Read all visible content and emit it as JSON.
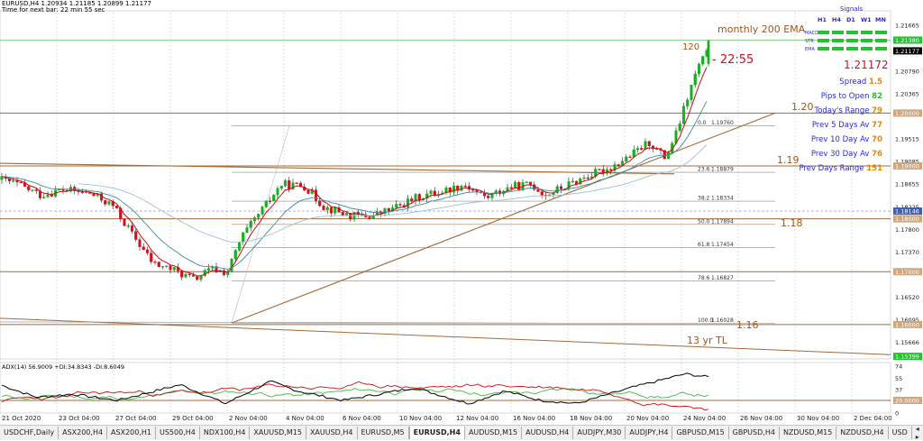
{
  "window": {
    "title": "EURUSD,H4  1.20934 1.21185 1.20899 1.21177",
    "subtitle": "Time for next bar: 22 min 55 sec"
  },
  "colors": {
    "background": "#ffffff",
    "grid": "#c9c9c9",
    "bull_candle": "#13b11d",
    "bear_candle": "#d0101e",
    "ema_red": "#c41010",
    "ema_teal": "#3d8b9e",
    "ema_lightblue": "#9cc2d8",
    "trendline": "#a36a3a",
    "fib": "#8a8a8a",
    "annotation": "#a3561a",
    "signal_green": "#22c32e",
    "price_red": "#d0101e",
    "adx_black": "#000000",
    "adx_green": "#45b845",
    "adx_red": "#c41010"
  },
  "price_axis": {
    "ticks": [
      "1.21665",
      "1.21380",
      "1.21177",
      "1.20790",
      "1.20365",
      "1.20000",
      "1.19515",
      "1.19085",
      "1.19000",
      "1.18655",
      "1.18225",
      "1.18146",
      "1.18000",
      "1.17800",
      "1.17370",
      "1.17000",
      "1.16520",
      "1.16095",
      "1.16000",
      "1.15666",
      "1.15395"
    ],
    "min": 1.1535,
    "max": 1.219
  },
  "price_markers": [
    {
      "label": "1.21380",
      "price": 1.2138,
      "kind": "level"
    },
    {
      "label": "1.21177",
      "price": 1.21177,
      "kind": "current"
    },
    {
      "label": "1.20000",
      "price": 1.2,
      "kind": "level"
    },
    {
      "label": "1.19000",
      "price": 1.19,
      "kind": "level"
    },
    {
      "label": "1.18146",
      "price": 1.18146,
      "kind": "bid"
    },
    {
      "label": "1.18000",
      "price": 1.18,
      "kind": "level"
    },
    {
      "label": "1.17000",
      "price": 1.17,
      "kind": "level"
    },
    {
      "label": "1.16000",
      "price": 1.16,
      "kind": "level"
    },
    {
      "label": "1.15399",
      "price": 1.15399,
      "kind": "level"
    }
  ],
  "time_axis": {
    "labels": [
      "21 Oct 2020",
      "23 Oct 04:00",
      "27 Oct 04:00",
      "29 Oct 04:00",
      "2 Nov 04:00",
      "4 Nov 04:00",
      "6 Nov 04:00",
      "10 Nov 04:00",
      "12 Nov 04:00",
      "16 Nov 04:00",
      "18 Nov 04:00",
      "20 Nov 04:00",
      "24 Nov 04:00",
      "26 Nov 04:00",
      "30 Nov 04:00",
      "2 Dec 04:00"
    ]
  },
  "fib_levels": [
    {
      "label": "0.0",
      "value": "1.19760",
      "price": 1.1976
    },
    {
      "label": "23.6",
      "value": "1.18879",
      "price": 1.18879
    },
    {
      "label": "38.2",
      "value": "1.18334",
      "price": 1.18334
    },
    {
      "label": "50.0",
      "value": "1.17894",
      "price": 1.17894
    },
    {
      "label": "61.8",
      "value": "1.17454",
      "price": 1.17454
    },
    {
      "label": "78.6",
      "value": "1.16827",
      "price": 1.16827
    },
    {
      "label": "100.0",
      "value": "1.16028",
      "price": 1.16028
    }
  ],
  "annotations": {
    "monthly_ema": "monthly 200 EMA",
    "count_120": "120",
    "timer": "- 22:55",
    "lvl_120": "1.20",
    "lvl_119": "1.19",
    "lvl_118": "1.18",
    "lvl_116": "1.16",
    "tl_13yr": "13 yr TL"
  },
  "signals": {
    "title": "Signals",
    "timeframes": [
      "H1",
      "H4",
      "D1",
      "W1",
      "MN"
    ],
    "rows": [
      "MACD",
      "STR",
      "EMA"
    ],
    "price": "1.21172"
  },
  "stats": [
    {
      "label": "Spread",
      "value": "1.5",
      "value_color": "#e08a00"
    },
    {
      "label": "Pips to Open",
      "value": "82",
      "value_color": "#22c32e"
    },
    {
      "label": "Today's Range",
      "value": "79",
      "value_color": "#e08a00"
    },
    {
      "label": "Prev 5 Days Av",
      "value": "77",
      "value_color": "#e08a00"
    },
    {
      "label": "Prev 10 Day Av",
      "value": "70",
      "value_color": "#e08a00"
    },
    {
      "label": "Prev 30 Day Av",
      "value": "76",
      "value_color": "#e08a00"
    },
    {
      "label": "Prev Days Range",
      "value": "151",
      "value_color": "#e08a00"
    }
  ],
  "adx": {
    "title": "ADX(14) 56.9009 +DI:34.8343 -DI:8.6049",
    "axis_ticks": [
      "74",
      "55",
      "37",
      "20.0000",
      "0"
    ],
    "min": 0,
    "max": 80
  },
  "tabs": [
    {
      "label": "USDCHF,Daily",
      "active": false
    },
    {
      "label": "ASX200,H4",
      "active": false
    },
    {
      "label": "ASX200,H1",
      "active": false
    },
    {
      "label": "US500,H4",
      "active": false
    },
    {
      "label": "NDX100,H4",
      "active": false
    },
    {
      "label": "XAUUSD,M15",
      "active": false
    },
    {
      "label": "XAUUSD,H4",
      "active": false
    },
    {
      "label": "EURUSD,M5",
      "active": false
    },
    {
      "label": "EURUSD,H4",
      "active": true
    },
    {
      "label": "AUDUSD,M15",
      "active": false
    },
    {
      "label": "AUDUSD,H4",
      "active": false
    },
    {
      "label": "AUDJPY,M30",
      "active": false
    },
    {
      "label": "AUDJPY,H4",
      "active": false
    },
    {
      "label": "GBPUSD,M15",
      "active": false
    },
    {
      "label": "GBPUSD,H4",
      "active": false
    },
    {
      "label": "NZDUSD,M15",
      "active": false
    },
    {
      "label": "NZDUSD,H4",
      "active": false
    },
    {
      "label": "USD",
      "active": false
    }
  ],
  "tab_scroll_icon": "arrow-left-right-icon"
}
